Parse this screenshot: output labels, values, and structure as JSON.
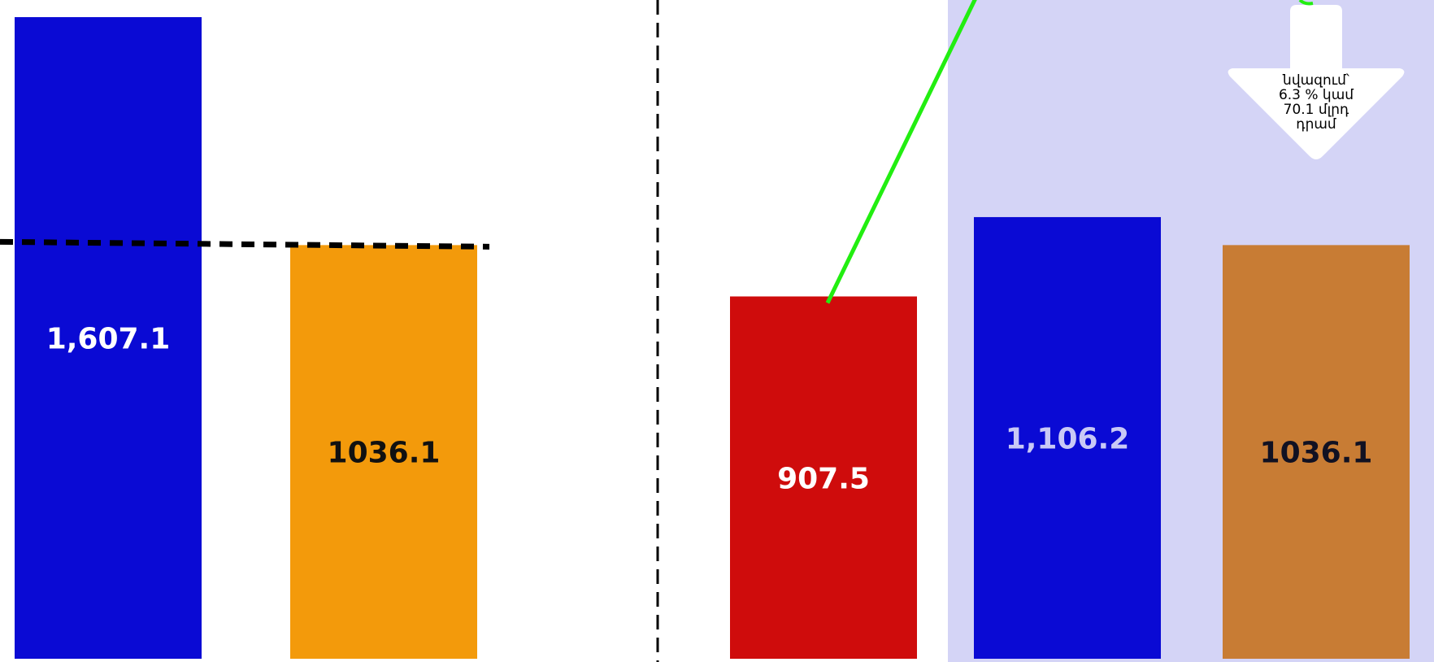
{
  "chart_data": {
    "type": "bar",
    "title": "",
    "xlabel": "",
    "ylabel": "",
    "ylim": [
      0,
      1650
    ],
    "grid": false,
    "bars": [
      {
        "value": 1607.1,
        "label": "1,607.1",
        "color": "#0a0ad4",
        "label_color": "#ffffff"
      },
      {
        "value": 1036.1,
        "label": "1036.1",
        "color": "#f39a0b",
        "label_color": "#111111"
      },
      {
        "value": 907.5,
        "label": "907.5",
        "color": "#cf0c0c",
        "label_color": "#ffffff"
      },
      {
        "value": 1106.2,
        "label": "1,106.2",
        "color": "#0a0ad4",
        "label_color": "#c9c9f6"
      },
      {
        "value": 1036.1,
        "label": "1036.1",
        "color": "#c87c34",
        "label_color": "#111122"
      }
    ],
    "reference_line": {
      "value": 1036.1,
      "style": "dashed",
      "color": "#000000"
    },
    "group_divider": {
      "style": "dashed",
      "color": "#000000"
    },
    "highlight_region": {
      "color": "#d4d4f6"
    },
    "trend_line": {
      "color": "#22ee11"
    },
    "annotation": {
      "type": "down-arrow",
      "lines": [
        "նվազում՝",
        "6.3 % կամ",
        "70.1 մլրդ",
        "դրամ"
      ],
      "fill": "#ffffff"
    }
  }
}
